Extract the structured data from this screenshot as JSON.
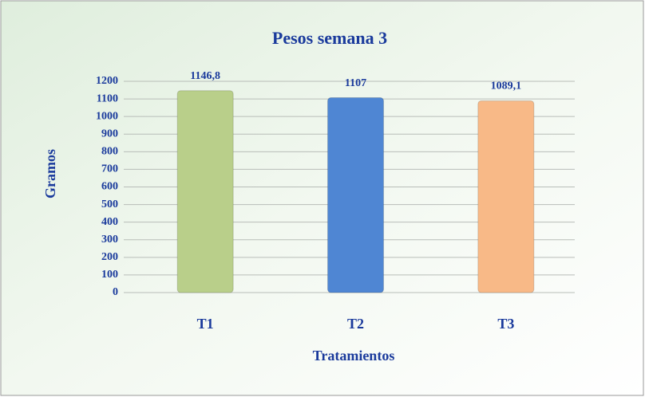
{
  "chart_data": {
    "type": "bar",
    "title": "Pesos semana 3",
    "categories": [
      "T1",
      "T2",
      "T3"
    ],
    "values": [
      1146.8,
      1107,
      1089.1
    ],
    "value_labels": [
      "1146,8",
      "1107",
      "1089,1"
    ],
    "colors": [
      "#b9cf8a",
      "#4f86d3",
      "#f8b987"
    ],
    "x_label": "Tratamientos",
    "y_label": "Gramos",
    "ylim": [
      0,
      1200
    ],
    "yticks": [
      0,
      100,
      200,
      300,
      400,
      500,
      600,
      700,
      800,
      900,
      1000,
      1100,
      1200
    ],
    "grid": true
  }
}
